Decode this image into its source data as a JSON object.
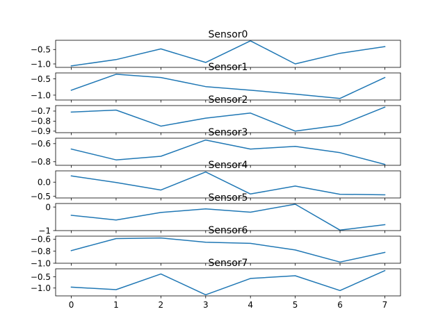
{
  "chart_data": {
    "type": "line",
    "layout": "8 stacked subplots sharing x axis",
    "x": [
      0,
      1,
      2,
      3,
      4,
      5,
      6,
      7
    ],
    "xticks": [
      "0",
      "1",
      "2",
      "3",
      "4",
      "5",
      "6",
      "7"
    ],
    "grid": false,
    "line_color": "#1f77b4",
    "panels": [
      {
        "title": "Sensor0",
        "ylim": [
          -1.12,
          -0.18
        ],
        "yticks": [
          -0.5,
          -1.0
        ],
        "ytick_labels": [
          "−0.5",
          "−1.0"
        ],
        "values": [
          -1.07,
          -0.85,
          -0.48,
          -0.95,
          -0.2,
          -1.0,
          -0.63,
          -0.4
        ]
      },
      {
        "title": "Sensor1",
        "ylim": [
          -1.15,
          -0.32
        ],
        "yticks": [
          -0.5,
          -1.0
        ],
        "ytick_labels": [
          "−0.5",
          "−1.0"
        ],
        "values": [
          -0.85,
          -0.36,
          -0.46,
          -0.74,
          -0.85,
          -0.97,
          -1.1,
          -0.46
        ]
      },
      {
        "title": "Sensor2",
        "ylim": [
          -0.915,
          -0.645
        ],
        "yticks": [
          -0.7,
          -0.8,
          -0.9
        ],
        "ytick_labels": [
          "−0.7",
          "−0.8",
          "−0.9"
        ],
        "values": [
          -0.71,
          -0.69,
          -0.85,
          -0.77,
          -0.72,
          -0.9,
          -0.84,
          -0.66
        ]
      },
      {
        "title": "Sensor3",
        "ylim": [
          -0.84,
          -0.54
        ],
        "yticks": [
          -0.6,
          -0.8
        ],
        "ytick_labels": [
          "−0.6",
          "−0.8"
        ],
        "values": [
          -0.66,
          -0.78,
          -0.74,
          -0.56,
          -0.66,
          -0.63,
          -0.7,
          -0.83
        ]
      },
      {
        "title": "Sensor4",
        "ylim": [
          -0.56,
          0.4
        ],
        "yticks": [
          0.0,
          -0.5
        ],
        "ytick_labels": [
          "0.0",
          "−0.5"
        ],
        "values": [
          0.22,
          -0.01,
          -0.28,
          0.36,
          -0.42,
          -0.14,
          -0.43,
          -0.45
        ]
      },
      {
        "title": "Sensor5",
        "ylim": [
          -1.0,
          0.15
        ],
        "yticks": [
          0,
          -1
        ],
        "ytick_labels": [
          "0",
          "−1"
        ],
        "values": [
          -0.35,
          -0.55,
          -0.23,
          -0.08,
          -0.22,
          0.12,
          -0.98,
          -0.75
        ]
      },
      {
        "title": "Sensor6",
        "ylim": [
          -1.0,
          -0.55
        ],
        "yticks": [
          -0.6,
          -0.8,
          -1.0
        ],
        "ytick_labels": [
          "−0.6",
          "−0.8",
          "−1.0"
        ],
        "values": [
          -0.79,
          -0.59,
          -0.58,
          -0.65,
          -0.67,
          -0.78,
          -0.98,
          -0.82
        ]
      },
      {
        "title": "Sensor7",
        "ylim": [
          -1.35,
          -0.14
        ],
        "yticks": [
          -0.5,
          -1.0
        ],
        "ytick_labels": [
          "−0.5",
          "−1.0"
        ],
        "values": [
          -0.96,
          -1.07,
          -0.37,
          -1.3,
          -0.57,
          -0.45,
          -1.11,
          -0.22
        ]
      }
    ]
  }
}
